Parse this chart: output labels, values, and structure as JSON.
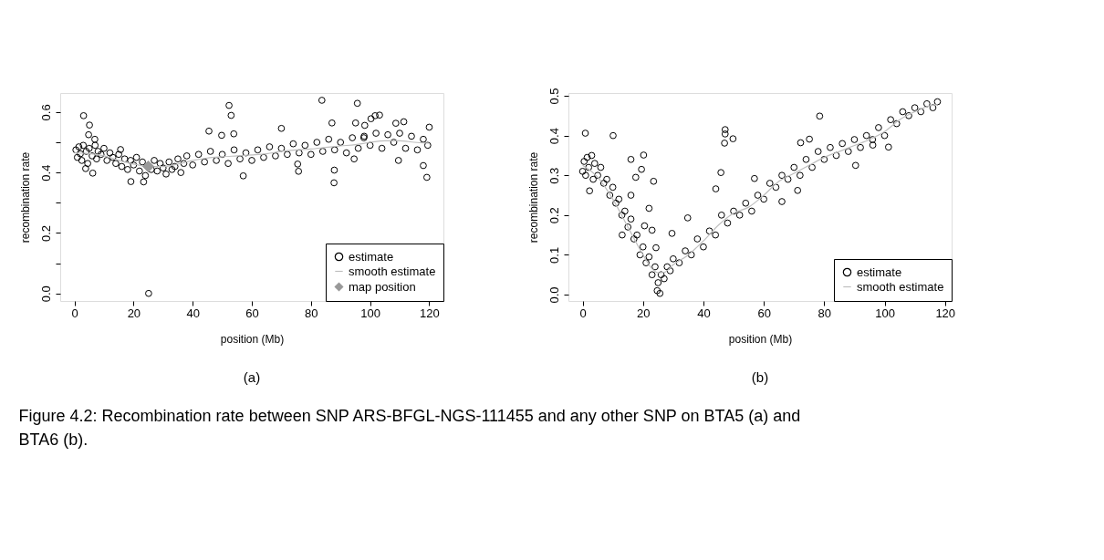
{
  "chart_data": [
    {
      "type": "scatter",
      "title": "(a)",
      "xlabel": "position (Mb)",
      "ylabel": "recombination rate",
      "xlim": [
        -4.8,
        124.8
      ],
      "ylim": [
        -0.025,
        0.663
      ],
      "xticks": [
        0,
        20,
        40,
        60,
        80,
        100,
        120
      ],
      "yticks": [
        {
          "value": 0,
          "label": "0.0"
        },
        {
          "value": 0.1,
          "label": null
        },
        {
          "value": 0.2,
          "label": "0.2"
        },
        {
          "value": 0.3,
          "label": null
        },
        {
          "value": 0.4,
          "label": "0.4"
        },
        {
          "value": 0.5,
          "label": null
        },
        {
          "value": 0.6,
          "label": "0.6"
        }
      ],
      "grid": false,
      "legend": "bottom right",
      "series": [
        {
          "name": "estimate",
          "type": "scatter",
          "marker": "circle",
          "color": "#000000",
          "x": [
            0.5,
            1,
            1.5,
            2,
            2.5,
            3,
            4,
            4.5,
            5,
            6,
            7,
            7.5,
            8,
            9,
            10,
            11,
            12,
            13,
            14,
            15,
            16,
            17,
            18,
            19,
            20,
            21,
            22,
            23,
            24,
            26,
            27,
            28,
            29,
            30,
            31,
            32,
            33,
            34,
            35,
            36,
            37,
            38,
            40,
            42,
            44,
            46,
            48,
            50,
            52,
            54,
            56,
            58,
            60,
            62,
            64,
            66,
            68,
            70,
            72,
            74,
            76,
            78,
            80,
            82,
            84,
            86,
            88,
            90,
            92,
            94,
            96,
            98,
            100,
            102,
            104,
            106,
            108,
            110,
            112,
            114,
            116,
            118,
            119.5,
            3.1,
            5.1,
            4.8,
            6.9,
            6.2,
            3.8,
            19.1,
            15.6,
            23.4,
            25.1,
            45.5,
            52.3,
            53,
            53.9,
            49.8,
            57.1,
            70,
            75.8,
            75.5,
            83.7,
            87.1,
            87.9,
            87.8,
            95.7,
            94.6,
            95.1,
            98.2,
            100.3,
            101.7,
            103.2,
            111.4,
            108.7,
            118,
            119.2,
            120,
            97.9,
            109.6
          ],
          "values": [
            0.475,
            0.45,
            0.485,
            0.462,
            0.44,
            0.49,
            0.47,
            0.43,
            0.48,
            0.455,
            0.49,
            0.445,
            0.47,
            0.46,
            0.48,
            0.44,
            0.465,
            0.45,
            0.43,
            0.46,
            0.42,
            0.445,
            0.41,
            0.44,
            0.425,
            0.45,
            0.405,
            0.435,
            0.39,
            0.41,
            0.44,
            0.405,
            0.43,
            0.415,
            0.395,
            0.435,
            0.41,
            0.42,
            0.445,
            0.4,
            0.43,
            0.455,
            0.425,
            0.46,
            0.435,
            0.47,
            0.44,
            0.46,
            0.43,
            0.475,
            0.445,
            0.465,
            0.44,
            0.475,
            0.45,
            0.485,
            0.455,
            0.48,
            0.46,
            0.495,
            0.465,
            0.49,
            0.46,
            0.5,
            0.47,
            0.51,
            0.475,
            0.5,
            0.465,
            0.515,
            0.48,
            0.52,
            0.49,
            0.53,
            0.48,
            0.525,
            0.5,
            0.53,
            0.48,
            0.52,
            0.475,
            0.51,
            0.49,
            0.588,
            0.557,
            0.525,
            0.51,
            0.398,
            0.413,
            0.37,
            0.476,
            0.369,
            0.0,
            0.537,
            0.622,
            0.589,
            0.528,
            0.523,
            0.389,
            0.546,
            0.404,
            0.428,
            0.639,
            0.564,
            0.408,
            0.366,
            0.629,
            0.445,
            0.564,
            0.556,
            0.578,
            0.588,
            0.59,
            0.568,
            0.563,
            0.423,
            0.384,
            0.55,
            0.515,
            0.44
          ]
        },
        {
          "name": "smooth estimate",
          "type": "line",
          "marker": "none",
          "color": "#bebebe",
          "x": [
            0,
            5,
            10,
            15,
            20,
            25,
            30,
            35,
            40,
            45,
            50,
            55,
            60,
            65,
            70,
            75,
            80,
            85,
            90,
            95,
            100,
            105,
            110,
            115,
            120
          ],
          "values": [
            0.465,
            0.463,
            0.455,
            0.44,
            0.428,
            0.42,
            0.42,
            0.428,
            0.44,
            0.448,
            0.452,
            0.455,
            0.458,
            0.462,
            0.47,
            0.475,
            0.478,
            0.483,
            0.488,
            0.492,
            0.5,
            0.505,
            0.505,
            0.5,
            0.497
          ]
        },
        {
          "name": "map position",
          "type": "scatter",
          "marker": "diamond",
          "color": "#999999",
          "x": [
            25
          ],
          "values": [
            0.42
          ]
        }
      ]
    },
    {
      "type": "scatter",
      "title": "(b)",
      "xlabel": "position (Mb)",
      "ylabel": "recombination rate",
      "xlim": [
        -4.7,
        122.2
      ],
      "ylim": [
        -0.016,
        0.507
      ],
      "xticks": [
        0,
        20,
        40,
        60,
        80,
        100,
        120
      ],
      "yticks": [
        {
          "value": 0,
          "label": "0.0"
        },
        0.1,
        0.2,
        0.3,
        0.4,
        0.5
      ],
      "grid": false,
      "legend": "bottom right",
      "annotations": [
        "Figure 4.2: Recombination rate between SNP ARS-BFGL-NGS-111455 and any other SNP on BTA5 (a) and BTA6 (b)."
      ],
      "series": [
        {
          "name": "estimate",
          "type": "scatter",
          "marker": "circle",
          "color": "#000000",
          "x": [
            0,
            0.5,
            1,
            1.5,
            2,
            3,
            3.5,
            4,
            5,
            6,
            7,
            8,
            9,
            10,
            11,
            12,
            13,
            14,
            15,
            16,
            17,
            18,
            19,
            20,
            21,
            22,
            23,
            24,
            25,
            26,
            27,
            28,
            29,
            30,
            32,
            34,
            36,
            38,
            40,
            42,
            44,
            46,
            48,
            50,
            52,
            54,
            56,
            58,
            60,
            62,
            64,
            66,
            68,
            70,
            72,
            74,
            76,
            78,
            80,
            82,
            84,
            86,
            88,
            90,
            92,
            94,
            96,
            98,
            100,
            102,
            104,
            106,
            108,
            110,
            112,
            114,
            116,
            117.5,
            0.9,
            10.1,
            16,
            20.2,
            19.5,
            23.5,
            17.6,
            22,
            23,
            20.5,
            16,
            29.6,
            34.8,
            44.1,
            45.8,
            47.2,
            47.2,
            47,
            49.8,
            56.9,
            66,
            71.2,
            72.2,
            75.1,
            78.5,
            90.4,
            101.3,
            96.1,
            24.3,
            2.3,
            13.1,
            25.6,
            24.7
          ],
          "values": [
            0.31,
            0.335,
            0.3,
            0.345,
            0.32,
            0.35,
            0.29,
            0.33,
            0.3,
            0.32,
            0.28,
            0.29,
            0.25,
            0.27,
            0.23,
            0.24,
            0.2,
            0.21,
            0.17,
            0.19,
            0.14,
            0.15,
            0.1,
            0.12,
            0.08,
            0.095,
            0.05,
            0.07,
            0.03,
            0.05,
            0.04,
            0.07,
            0.06,
            0.09,
            0.08,
            0.11,
            0.1,
            0.14,
            0.12,
            0.16,
            0.15,
            0.2,
            0.18,
            0.21,
            0.2,
            0.23,
            0.21,
            0.25,
            0.24,
            0.28,
            0.27,
            0.3,
            0.29,
            0.32,
            0.3,
            0.34,
            0.32,
            0.36,
            0.34,
            0.37,
            0.35,
            0.38,
            0.36,
            0.39,
            0.37,
            0.4,
            0.39,
            0.42,
            0.4,
            0.44,
            0.43,
            0.46,
            0.45,
            0.47,
            0.46,
            0.48,
            0.47,
            0.485,
            0.406,
            0.4,
            0.34,
            0.351,
            0.315,
            0.285,
            0.295,
            0.217,
            0.162,
            0.173,
            0.25,
            0.154,
            0.193,
            0.266,
            0.307,
            0.415,
            0.404,
            0.381,
            0.392,
            0.292,
            0.234,
            0.262,
            0.382,
            0.391,
            0.449,
            0.325,
            0.371,
            0.376,
            0.118,
            0.261,
            0.15,
            0.003,
            0.01
          ]
        },
        {
          "name": "smooth estimate",
          "type": "line",
          "marker": "none",
          "color": "#bebebe",
          "x": [
            0,
            5,
            10,
            15,
            20,
            23,
            25,
            27,
            30,
            35,
            40,
            45,
            50,
            55,
            60,
            65,
            70,
            75,
            80,
            85,
            90,
            95,
            100,
            105,
            110,
            115,
            117.5
          ],
          "values": [
            0.325,
            0.295,
            0.24,
            0.17,
            0.1,
            0.065,
            0.055,
            0.056,
            0.075,
            0.1,
            0.135,
            0.175,
            0.205,
            0.22,
            0.25,
            0.285,
            0.305,
            0.325,
            0.345,
            0.36,
            0.375,
            0.39,
            0.41,
            0.44,
            0.46,
            0.475,
            0.478
          ]
        }
      ]
    }
  ]
}
